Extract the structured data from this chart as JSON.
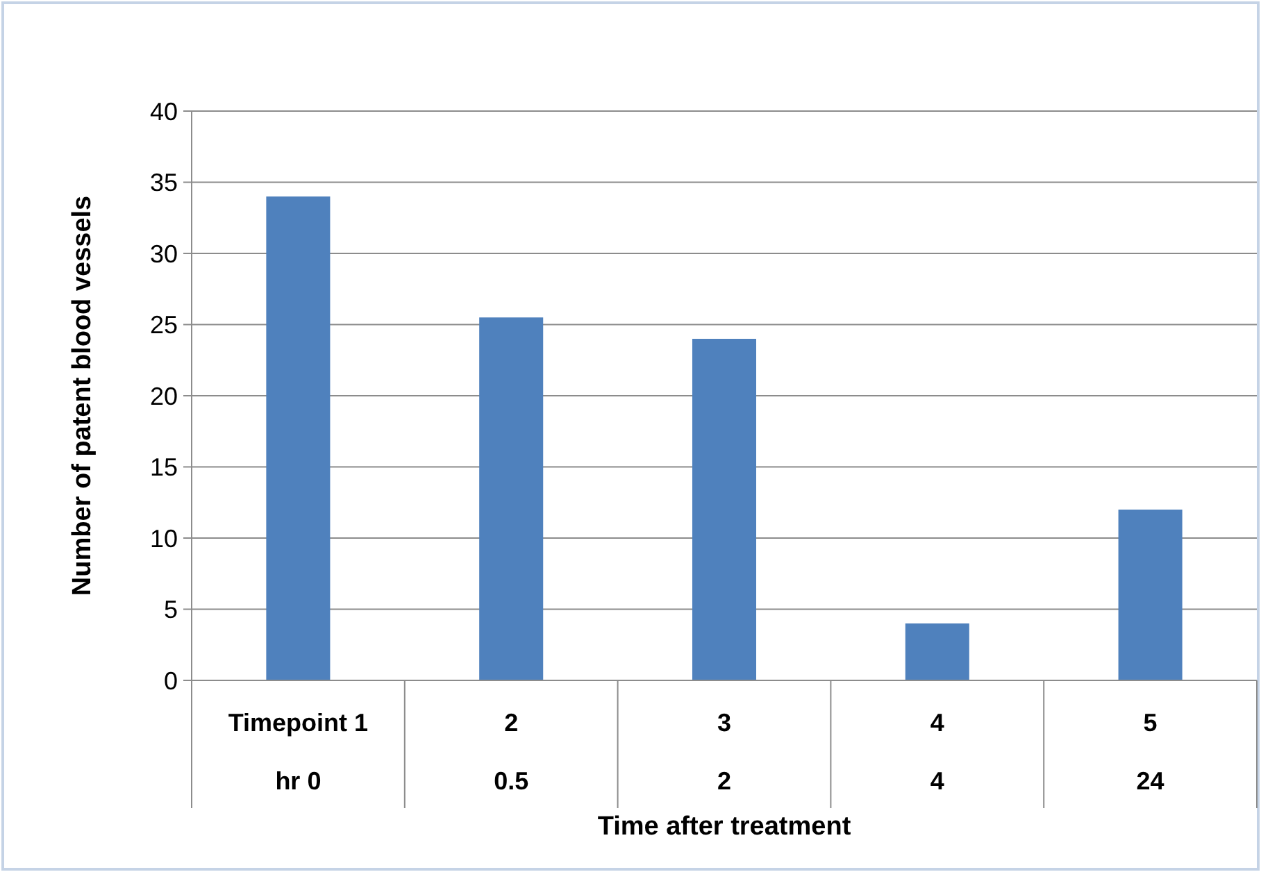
{
  "chart_data": {
    "type": "bar",
    "xlabel": "Time after treatment",
    "ylabel": "Number of patent blood vessels",
    "categories": [
      "Timepoint 1\nhr 0",
      "2\n0.5",
      "3\n2",
      "4\n4",
      "5\n24"
    ],
    "values": [
      34,
      25.5,
      24,
      4,
      12
    ],
    "color": "#4f81bd",
    "ylim": [
      0,
      40
    ],
    "yticks": [
      0,
      5,
      10,
      15,
      20,
      25,
      30,
      35,
      40
    ],
    "grid": "y"
  }
}
